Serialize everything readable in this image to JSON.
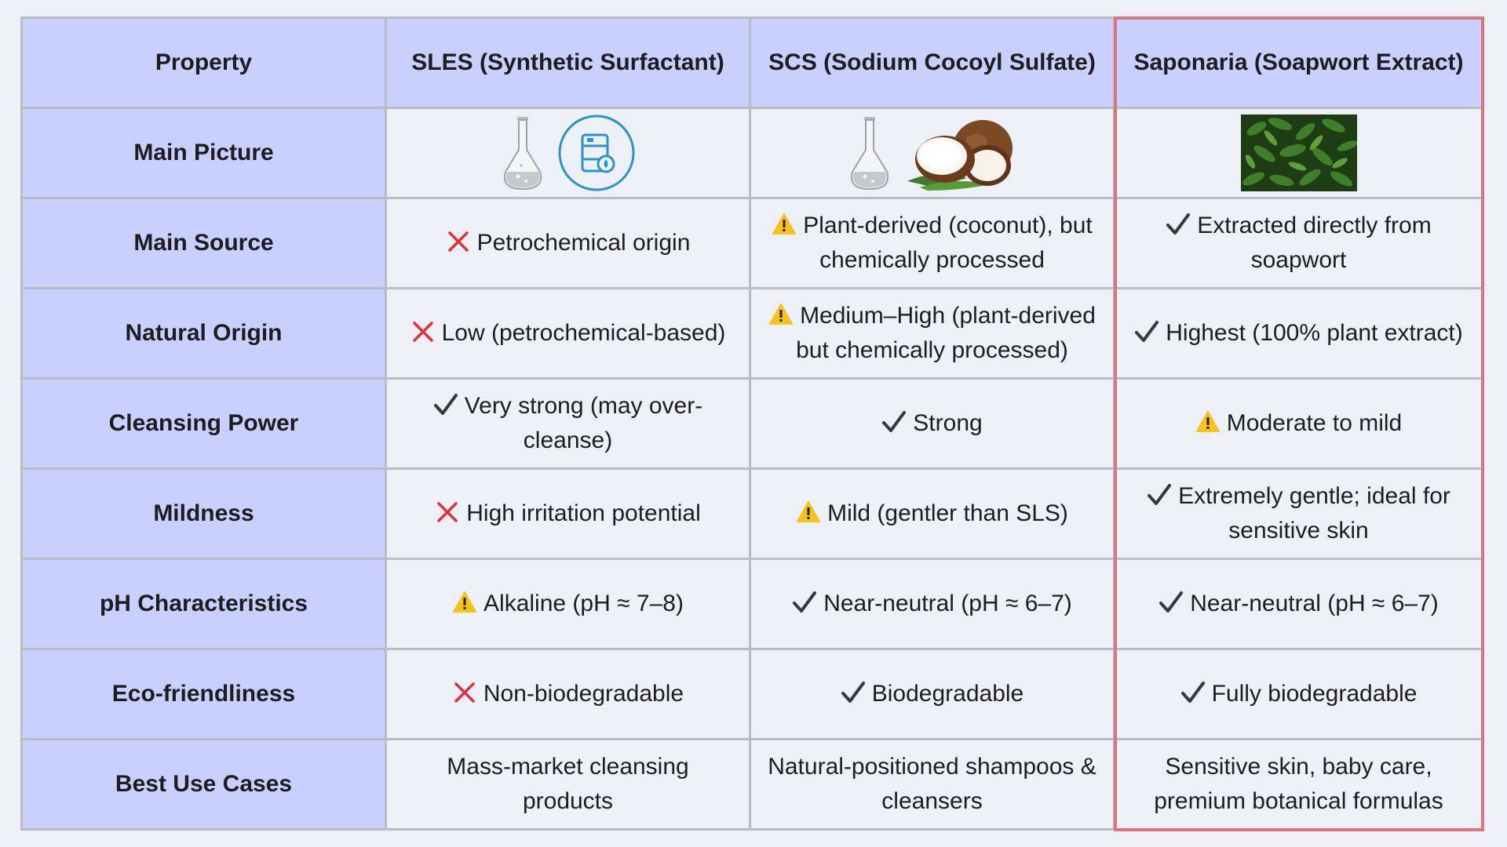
{
  "header": {
    "property": "Property",
    "sles": "SLES (Synthetic Surfactant)",
    "scs": "SCS (Sodium Cocoyl Sulfate)",
    "saponaria": "Saponaria (Soapwort Extract)"
  },
  "rows": [
    {
      "property": "Main Picture",
      "sles": {
        "icons": [
          "flask-icon",
          "oil-barrel-icon"
        ]
      },
      "scs": {
        "icons": [
          "flask-icon",
          "coconut-icon"
        ]
      },
      "saponaria": {
        "icons": [
          "soapwort-leaves-photo"
        ]
      }
    },
    {
      "property": "Main Source",
      "sles": {
        "mark": "cross",
        "line1": "Petrochemical origin",
        "line2": ""
      },
      "scs": {
        "mark": "warning",
        "line1": "Plant-derived (coconut), but",
        "line2": "chemically processed"
      },
      "saponaria": {
        "mark": "check",
        "line1": "Extracted directly from",
        "line2": "soapwort"
      }
    },
    {
      "property": "Natural Origin",
      "sles": {
        "mark": "cross",
        "line1": "Low (petrochemical-based)",
        "line2": ""
      },
      "scs": {
        "mark": "warning",
        "line1": "Medium–High (plant-derived",
        "line2": "but chemically processed)"
      },
      "saponaria": {
        "mark": "check",
        "line1": "Highest (100% plant extract)",
        "line2": ""
      }
    },
    {
      "property": "Cleansing Power",
      "sles": {
        "mark": "check",
        "line1": "Very strong (may over-",
        "line2": "cleanse)"
      },
      "scs": {
        "mark": "check",
        "line1": "Strong",
        "line2": ""
      },
      "saponaria": {
        "mark": "warning",
        "line1": "Moderate to mild",
        "line2": ""
      }
    },
    {
      "property": "Mildness",
      "sles": {
        "mark": "cross",
        "line1": "High irritation potential",
        "line2": ""
      },
      "scs": {
        "mark": "warning",
        "line1": "Mild (gentler than SLS)",
        "line2": ""
      },
      "saponaria": {
        "mark": "check",
        "line1": "Extremely gentle; ideal for",
        "line2": "sensitive skin"
      }
    },
    {
      "property": "pH Characteristics",
      "sles": {
        "mark": "warning",
        "line1": "Alkaline (pH ≈ 7–8)",
        "line2": ""
      },
      "scs": {
        "mark": "check",
        "line1": "Near-neutral (pH ≈ 6–7)",
        "line2": ""
      },
      "saponaria": {
        "mark": "check",
        "line1": "Near-neutral (pH ≈ 6–7)",
        "line2": ""
      }
    },
    {
      "property": "Eco-friendliness",
      "sles": {
        "mark": "cross",
        "line1": "Non-biodegradable",
        "line2": ""
      },
      "scs": {
        "mark": "check",
        "line1": "Biodegradable",
        "line2": ""
      },
      "saponaria": {
        "mark": "check",
        "line1": "Fully biodegradable",
        "line2": ""
      }
    },
    {
      "property": "Best Use Cases",
      "sles": {
        "mark": "",
        "line1": "Mass-market cleansing",
        "line2": "products"
      },
      "scs": {
        "mark": "",
        "line1": "Natural-positioned shampoos &",
        "line2": "cleansers"
      },
      "saponaria": {
        "mark": "",
        "line1": "Sensitive skin, baby care,",
        "line2": "premium botanical formulas"
      }
    }
  ],
  "colors": {
    "header_bg": "#c9d0fd",
    "cell_bg": "#edf0f6",
    "border": "#b9bcc5",
    "highlight": "#d97480",
    "cross": "#e0313b",
    "check": "#333a44",
    "warning": "#f7c21a"
  }
}
